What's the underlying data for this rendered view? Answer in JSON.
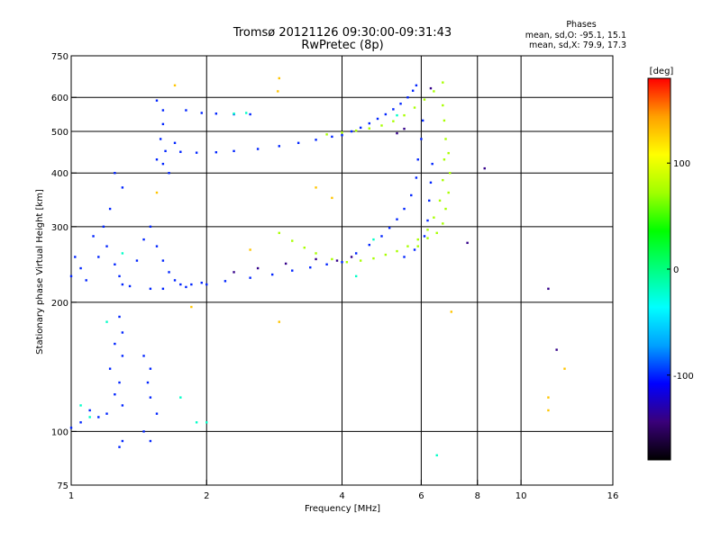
{
  "chart_data": {
    "type": "scatter",
    "title": "Tromsø 20121126 09:30:00-09:31:43",
    "subtitle": "RwPretec (8p)",
    "xlabel": "Frequency [MHz]",
    "ylabel": "Stationary phase Virtual Height [km]",
    "xscale": "log",
    "yscale": "log",
    "xlim": [
      1,
      16
    ],
    "ylim": [
      75,
      750
    ],
    "xticks": [
      1,
      2,
      4,
      6,
      8,
      10,
      16
    ],
    "yticks": [
      75,
      100,
      200,
      300,
      400,
      500,
      600,
      750
    ],
    "x_grid": [
      2,
      4,
      6,
      8,
      10
    ],
    "y_grid": [
      100,
      200,
      300,
      400,
      500,
      600
    ],
    "stats": {
      "heading": "Phases",
      "o_line": "mean, sd,O: -95.1, 15.1",
      "x_line": "mean, sd,X:  79.9, 17.3"
    },
    "colorbar": {
      "label": "[deg]",
      "min": -180,
      "max": 180,
      "ticks": [
        100,
        0,
        -100
      ],
      "colormap": [
        "#000000",
        "#3a007a",
        "#0000ff",
        "#00a0ff",
        "#00ffff",
        "#00ff80",
        "#00ff00",
        "#a0ff00",
        "#ffff00",
        "#ffa000",
        "#ff0000"
      ]
    },
    "series": [
      {
        "phase": -100,
        "points": [
          [
            4.0,
            490
          ],
          [
            4.2,
            500
          ],
          [
            4.4,
            510
          ],
          [
            4.6,
            522
          ],
          [
            4.8,
            535
          ],
          [
            5.0,
            548
          ],
          [
            5.2,
            563
          ],
          [
            5.4,
            580
          ],
          [
            5.6,
            600
          ],
          [
            5.75,
            622
          ],
          [
            5.85,
            640
          ],
          [
            1.75,
            448
          ],
          [
            1.9,
            446
          ],
          [
            2.1,
            447
          ],
          [
            2.3,
            450
          ],
          [
            2.6,
            455
          ],
          [
            2.9,
            462
          ],
          [
            3.2,
            470
          ],
          [
            3.5,
            478
          ],
          [
            3.8,
            486
          ],
          [
            1.55,
            590
          ],
          [
            1.6,
            560
          ],
          [
            1.6,
            520
          ],
          [
            1.58,
            480
          ],
          [
            1.62,
            450
          ],
          [
            1.6,
            420
          ],
          [
            1.55,
            430
          ],
          [
            1.7,
            470
          ],
          [
            1.65,
            400
          ],
          [
            1.8,
            560
          ],
          [
            1.95,
            552
          ],
          [
            2.1,
            550
          ],
          [
            2.3,
            548
          ],
          [
            2.5,
            548
          ],
          [
            1.5,
            215
          ],
          [
            1.6,
            215
          ],
          [
            1.8,
            217
          ],
          [
            2.0,
            220
          ],
          [
            2.2,
            224
          ],
          [
            2.5,
            228
          ],
          [
            2.8,
            232
          ],
          [
            3.1,
            237
          ],
          [
            3.4,
            241
          ],
          [
            3.7,
            245
          ],
          [
            4.0,
            248
          ],
          [
            1.5,
            300
          ],
          [
            1.55,
            270
          ],
          [
            1.6,
            250
          ],
          [
            1.65,
            235
          ],
          [
            1.7,
            225
          ],
          [
            1.75,
            220
          ],
          [
            1.85,
            220
          ],
          [
            1.95,
            222
          ],
          [
            1.4,
            250
          ],
          [
            1.45,
            280
          ],
          [
            4.3,
            260
          ],
          [
            4.6,
            272
          ],
          [
            4.9,
            285
          ],
          [
            5.1,
            298
          ],
          [
            5.3,
            312
          ],
          [
            5.5,
            330
          ],
          [
            5.7,
            355
          ],
          [
            5.85,
            390
          ],
          [
            5.9,
            430
          ],
          [
            6.0,
            480
          ],
          [
            6.05,
            530
          ],
          [
            1.25,
            400
          ],
          [
            1.3,
            370
          ],
          [
            1.22,
            330
          ],
          [
            1.18,
            300
          ],
          [
            1.2,
            270
          ],
          [
            1.25,
            245
          ],
          [
            1.28,
            230
          ],
          [
            1.3,
            220
          ],
          [
            1.35,
            218
          ],
          [
            1.15,
            255
          ],
          [
            1.12,
            285
          ],
          [
            1.02,
            255
          ],
          [
            1.05,
            240
          ],
          [
            1.08,
            225
          ],
          [
            1.0,
            230
          ],
          [
            1.28,
            185
          ],
          [
            1.3,
            170
          ],
          [
            1.25,
            160
          ],
          [
            1.3,
            150
          ],
          [
            1.22,
            140
          ],
          [
            1.28,
            130
          ],
          [
            1.25,
            122
          ],
          [
            1.3,
            115
          ],
          [
            1.2,
            110
          ],
          [
            1.15,
            108
          ],
          [
            1.1,
            112
          ],
          [
            1.05,
            105
          ],
          [
            1.0,
            102
          ],
          [
            1.45,
            150
          ],
          [
            1.5,
            140
          ],
          [
            1.48,
            130
          ],
          [
            1.5,
            120
          ],
          [
            1.55,
            110
          ],
          [
            1.45,
            100
          ],
          [
            1.5,
            95
          ],
          [
            1.3,
            95
          ],
          [
            1.28,
            92
          ],
          [
            5.5,
            255
          ],
          [
            5.8,
            265
          ],
          [
            6.1,
            285
          ],
          [
            6.2,
            310
          ],
          [
            6.25,
            345
          ],
          [
            6.3,
            380
          ],
          [
            6.35,
            420
          ]
        ]
      },
      {
        "phase": -140,
        "points": [
          [
            2.3,
            235
          ],
          [
            2.6,
            240
          ],
          [
            3.0,
            246
          ],
          [
            3.5,
            252
          ],
          [
            3.9,
            250
          ],
          [
            4.2,
            255
          ],
          [
            5.3,
            495
          ],
          [
            5.5,
            507
          ],
          [
            6.3,
            630
          ],
          [
            8.3,
            410
          ],
          [
            7.6,
            275
          ],
          [
            11.5,
            215
          ],
          [
            12.0,
            155
          ]
        ]
      },
      {
        "phase": -20,
        "points": [
          [
            1.1,
            108
          ],
          [
            1.05,
            115
          ],
          [
            1.3,
            260
          ],
          [
            1.2,
            180
          ],
          [
            1.75,
            120
          ],
          [
            1.9,
            105
          ],
          [
            2.3,
            550
          ],
          [
            2.45,
            552
          ],
          [
            2.0,
            105
          ],
          [
            4.7,
            280
          ],
          [
            6.5,
            88
          ],
          [
            4.3,
            230
          ],
          [
            5.3,
            545
          ]
        ]
      },
      {
        "phase": 75,
        "points": [
          [
            2.9,
            290
          ],
          [
            3.1,
            278
          ],
          [
            3.3,
            268
          ],
          [
            3.5,
            260
          ],
          [
            3.8,
            252
          ],
          [
            4.1,
            248
          ],
          [
            4.4,
            250
          ],
          [
            4.7,
            253
          ],
          [
            5.0,
            258
          ],
          [
            5.3,
            263
          ],
          [
            5.6,
            270
          ],
          [
            5.9,
            280
          ],
          [
            6.2,
            295
          ],
          [
            6.4,
            315
          ],
          [
            6.6,
            345
          ],
          [
            6.7,
            385
          ],
          [
            6.75,
            430
          ],
          [
            6.8,
            480
          ],
          [
            6.75,
            530
          ],
          [
            6.7,
            575
          ],
          [
            3.7,
            492
          ],
          [
            4.0,
            497
          ],
          [
            4.3,
            502
          ],
          [
            4.6,
            508
          ],
          [
            4.9,
            516
          ],
          [
            5.2,
            528
          ],
          [
            5.5,
            545
          ],
          [
            5.8,
            568
          ],
          [
            6.1,
            593
          ],
          [
            6.4,
            620
          ],
          [
            6.7,
            650
          ],
          [
            6.9,
            445
          ],
          [
            6.95,
            400
          ],
          [
            6.9,
            360
          ],
          [
            6.8,
            330
          ],
          [
            6.7,
            305
          ],
          [
            6.5,
            290
          ],
          [
            6.2,
            282
          ],
          [
            5.9,
            270
          ]
        ]
      },
      {
        "phase": 130,
        "points": [
          [
            1.7,
            640
          ],
          [
            2.9,
            665
          ],
          [
            2.88,
            620
          ],
          [
            2.5,
            265
          ],
          [
            7.0,
            190
          ],
          [
            1.85,
            195
          ],
          [
            12.5,
            140
          ],
          [
            11.5,
            120
          ],
          [
            11.5,
            112
          ],
          [
            2.9,
            180
          ],
          [
            1.55,
            360
          ],
          [
            3.5,
            370
          ],
          [
            3.8,
            350
          ]
        ]
      }
    ]
  }
}
